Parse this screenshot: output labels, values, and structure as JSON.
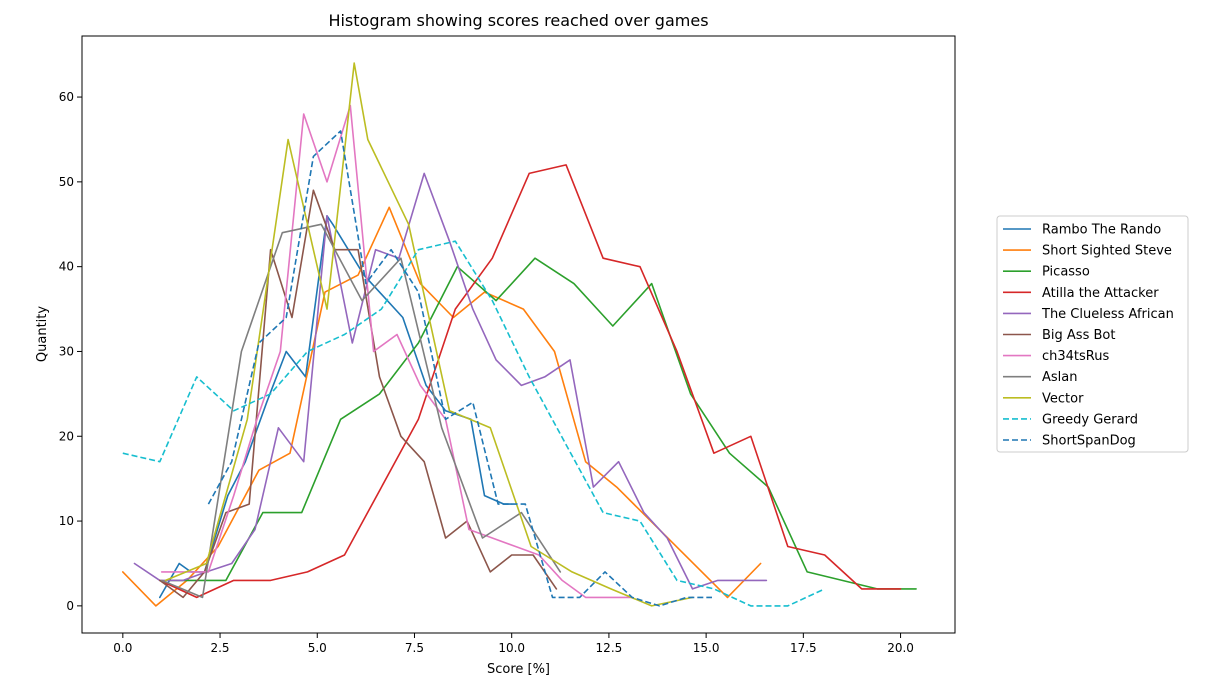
{
  "chart_data": {
    "type": "line",
    "title": "Histogram showing scores reached over games",
    "xlabel": "Score [%]",
    "ylabel": "Quantity",
    "xlim": [
      -1.05,
      21.4
    ],
    "ylim": [
      -3.2,
      67.2
    ],
    "x_ticks": [
      0,
      2.5,
      5,
      7.5,
      10,
      12.5,
      15,
      17.5,
      20
    ],
    "x_tick_labels": [
      "0.0",
      "2.5",
      "5.0",
      "7.5",
      "10.0",
      "12.5",
      "15.0",
      "17.5",
      "20.0"
    ],
    "y_ticks": [
      0,
      10,
      20,
      30,
      40,
      50,
      60
    ],
    "y_tick_labels": [
      "0",
      "10",
      "20",
      "30",
      "40",
      "50",
      "60"
    ],
    "grid": false,
    "legend_position": "right",
    "series": [
      {
        "name": "Rambo The Rando",
        "color": "#1f77b4",
        "dash": "solid",
        "x": [
          0.95,
          1.45,
          1.75,
          2.1,
          2.7,
          3.15,
          3.7,
          4.2,
          4.7,
          5.25,
          5.4,
          6.2,
          7.2,
          7.8,
          8.3,
          8.95,
          9.3,
          9.8,
          10.0
        ],
        "y": [
          1,
          5,
          4,
          4,
          13,
          17,
          24,
          30,
          27,
          46,
          45,
          39,
          34,
          26,
          23,
          22,
          13,
          12,
          12
        ]
      },
      {
        "name": "Short Sighted Steve",
        "color": "#ff7f0e",
        "dash": "solid",
        "x": [
          0.0,
          0.85,
          1.65,
          2.45,
          3.5,
          4.3,
          5.2,
          6.05,
          6.85,
          7.65,
          8.5,
          9.3,
          10.3,
          11.1,
          11.9,
          12.7,
          15.55,
          16.4
        ],
        "y": [
          4,
          0,
          3,
          7,
          16,
          18,
          37,
          39,
          47,
          38,
          34,
          37,
          35,
          30,
          17,
          14,
          1,
          5
        ]
      },
      {
        "name": "Picasso",
        "color": "#2ca02c",
        "dash": "solid",
        "x": [
          1.2,
          2.0,
          2.65,
          3.6,
          4.6,
          5.6,
          6.6,
          7.6,
          8.6,
          9.6,
          10.6,
          11.6,
          12.6,
          13.6,
          14.6,
          15.6,
          16.6,
          17.6,
          19.4,
          20.4
        ],
        "y": [
          3,
          3,
          3,
          11,
          11,
          22,
          25,
          31,
          40,
          36,
          41,
          38,
          33,
          38,
          25,
          18,
          14,
          4,
          2,
          2
        ]
      },
      {
        "name": "Atilla the Attacker",
        "color": "#d62728",
        "dash": "solid",
        "x": [
          0.95,
          1.9,
          2.85,
          3.8,
          4.75,
          5.7,
          7.6,
          8.55,
          9.5,
          10.45,
          11.4,
          12.35,
          13.3,
          14.25,
          15.2,
          16.15,
          17.1,
          18.05,
          19.0,
          20.0
        ],
        "y": [
          3,
          1,
          3,
          3,
          4,
          6,
          22,
          35,
          41,
          51,
          52,
          41,
          40,
          30,
          18,
          20,
          7,
          6,
          2,
          2
        ]
      },
      {
        "name": "The Clueless African",
        "color": "#9467bd",
        "dash": "solid",
        "x": [
          0.3,
          0.95,
          1.55,
          2.15,
          2.8,
          3.4,
          4.0,
          4.65,
          5.25,
          5.9,
          6.5,
          7.1,
          7.75,
          8.4,
          9.0,
          9.6,
          10.25,
          10.85,
          11.5,
          12.1,
          12.75,
          13.4,
          14.0,
          14.65,
          15.3,
          15.95,
          16.55
        ],
        "y": [
          5,
          3,
          3,
          4,
          5,
          9,
          21,
          17,
          46,
          31,
          42,
          41,
          51,
          43,
          35,
          29,
          26,
          27,
          29,
          14,
          17,
          11,
          8,
          2,
          3,
          3,
          3
        ]
      },
      {
        "name": "Big Ass Bot",
        "color": "#8c564b",
        "dash": "solid",
        "x": [
          0.95,
          1.55,
          2.1,
          2.65,
          3.25,
          3.8,
          4.35,
          4.9,
          5.45,
          6.05,
          6.6,
          7.15,
          7.75,
          8.3,
          8.85,
          9.45,
          10.0,
          10.55,
          11.15
        ],
        "y": [
          3,
          1,
          4,
          11,
          12,
          42,
          34,
          49,
          42,
          42,
          27,
          20,
          17,
          8,
          10,
          4,
          6,
          6,
          2
        ]
      },
      {
        "name": "ch34tsRus",
        "color": "#e377c2",
        "dash": "solid",
        "x": [
          1.0,
          1.6,
          2.2,
          2.85,
          3.45,
          4.05,
          4.65,
          5.25,
          5.85,
          6.45,
          7.05,
          7.65,
          8.3,
          8.9,
          9.5,
          10.1,
          10.7,
          11.3,
          11.9,
          12.5,
          13.1
        ],
        "y": [
          4,
          4,
          4,
          13,
          22,
          30,
          58,
          50,
          59,
          30,
          32,
          26,
          22,
          9,
          8,
          7,
          6,
          3,
          1,
          1,
          1
        ]
      },
      {
        "name": "Aslan",
        "color": "#7f7f7f",
        "dash": "solid",
        "x": [
          1.0,
          2.05,
          3.05,
          4.1,
          5.1,
          6.15,
          7.15,
          8.2,
          9.25,
          10.25,
          11.25
        ],
        "y": [
          3,
          1,
          30,
          44,
          45,
          36,
          41,
          21,
          8,
          11,
          4
        ]
      },
      {
        "name": "Vector",
        "color": "#bcbd22",
        "dash": "solid",
        "x": [
          1.1,
          2.15,
          3.2,
          4.25,
          5.25,
          5.95,
          6.3,
          7.35,
          8.4,
          9.45,
          10.5,
          11.55,
          12.55,
          13.6,
          14.65
        ],
        "y": [
          3,
          5,
          22,
          55,
          35,
          64,
          55,
          45,
          23,
          21,
          7,
          4,
          2,
          0,
          1
        ]
      },
      {
        "name": "Greedy Gerard",
        "color": "#17becf",
        "dash": "dashed",
        "x": [
          0.0,
          0.95,
          1.9,
          2.85,
          3.8,
          4.75,
          5.7,
          6.65,
          7.6,
          8.55,
          9.5,
          10.45,
          11.4,
          12.35,
          13.3,
          14.25,
          15.2,
          16.15,
          17.1,
          18.05
        ],
        "y": [
          18,
          17,
          27,
          23,
          25,
          30,
          32,
          35,
          42,
          43,
          36,
          27,
          19,
          11,
          10,
          3,
          2,
          0,
          0,
          2
        ]
      },
      {
        "name": "ShortSpanDog",
        "color": "#1f77b4",
        "dash": "dashed",
        "x": [
          2.2,
          2.8,
          3.5,
          4.2,
          4.9,
          5.6,
          6.25,
          6.9,
          7.6,
          8.3,
          9.0,
          9.65,
          10.35,
          11.05,
          11.75,
          12.4,
          13.1,
          13.8,
          14.5,
          15.15
        ],
        "y": [
          12,
          17,
          31,
          34,
          53,
          56,
          38,
          42,
          37,
          22,
          24,
          12,
          12,
          1,
          1,
          4,
          1,
          0,
          1,
          1
        ]
      }
    ]
  }
}
